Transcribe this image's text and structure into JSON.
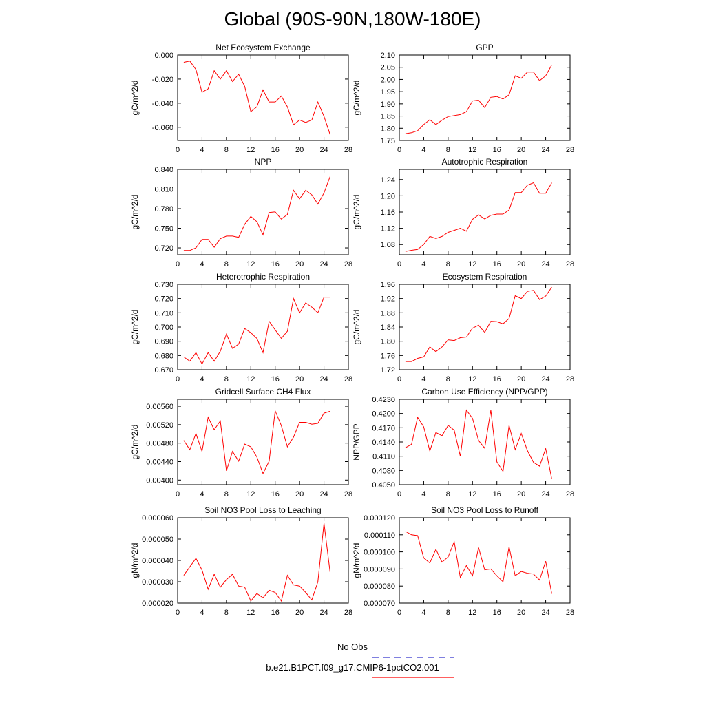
{
  "title": "Global (90S-90N,180W-180E)",
  "legend": [
    {
      "label": "No Obs",
      "color": "#3333cc",
      "style": "dashed"
    },
    {
      "label": "b.e21.B1PCT.f09_g17.CMIP6-1pctCO2.001",
      "color": "#ff0000",
      "style": "solid"
    }
  ],
  "chart_data": [
    {
      "type": "line",
      "title": "Net Ecosystem Exchange",
      "ylabel": "gC/m^2/d",
      "xlim": [
        0,
        28
      ],
      "ylim": [
        -0.071,
        0.0
      ],
      "xticks": [
        "0",
        "4",
        "8",
        "12",
        "16",
        "20",
        "24",
        "28"
      ],
      "yticks": [
        {
          "v": 0.0,
          "l": "0.000"
        },
        {
          "v": -0.02,
          "l": "-0.020"
        },
        {
          "v": -0.04,
          "l": "-0.040"
        },
        {
          "v": -0.06,
          "l": "-0.060"
        }
      ],
      "x": [
        1,
        2,
        3,
        4,
        5,
        6,
        7,
        8,
        9,
        10,
        11,
        12,
        13,
        14,
        15,
        16,
        17,
        18,
        19,
        20,
        21,
        22,
        23,
        24,
        25
      ],
      "y": [
        -0.006,
        -0.005,
        -0.012,
        -0.031,
        -0.028,
        -0.013,
        -0.02,
        -0.013,
        -0.022,
        -0.016,
        -0.026,
        -0.047,
        -0.043,
        -0.029,
        -0.039,
        -0.039,
        -0.034,
        -0.043,
        -0.058,
        -0.054,
        -0.056,
        -0.054,
        -0.039,
        -0.051,
        -0.066
      ]
    },
    {
      "type": "line",
      "title": "GPP",
      "ylabel": "gC/m^2/d",
      "xlim": [
        0,
        28
      ],
      "ylim": [
        1.75,
        2.1
      ],
      "xticks": [
        "0",
        "4",
        "8",
        "12",
        "16",
        "20",
        "24",
        "28"
      ],
      "yticks": [
        {
          "v": 1.75,
          "l": "1.75"
        },
        {
          "v": 1.8,
          "l": "1.80"
        },
        {
          "v": 1.85,
          "l": "1.85"
        },
        {
          "v": 1.9,
          "l": "1.90"
        },
        {
          "v": 1.95,
          "l": "1.95"
        },
        {
          "v": 2.0,
          "l": "2.00"
        },
        {
          "v": 2.05,
          "l": "2.05"
        },
        {
          "v": 2.1,
          "l": "2.10"
        }
      ],
      "x": [
        1,
        2,
        3,
        4,
        5,
        6,
        7,
        8,
        9,
        10,
        11,
        12,
        13,
        14,
        15,
        16,
        17,
        18,
        19,
        20,
        21,
        22,
        23,
        24,
        25
      ],
      "y": [
        1.778,
        1.782,
        1.79,
        1.815,
        1.835,
        1.815,
        1.833,
        1.848,
        1.852,
        1.856,
        1.868,
        1.912,
        1.915,
        1.885,
        1.927,
        1.93,
        1.92,
        1.937,
        2.015,
        2.005,
        2.03,
        2.03,
        1.995,
        2.015,
        2.06
      ]
    },
    {
      "type": "line",
      "title": "NPP",
      "ylabel": "gC/m^2/d",
      "xlim": [
        0,
        28
      ],
      "ylim": [
        0.7095,
        0.84
      ],
      "xticks": [
        "0",
        "4",
        "8",
        "12",
        "16",
        "20",
        "24",
        "28"
      ],
      "yticks": [
        {
          "v": 0.72,
          "l": "0.720"
        },
        {
          "v": 0.75,
          "l": "0.750"
        },
        {
          "v": 0.78,
          "l": "0.780"
        },
        {
          "v": 0.81,
          "l": "0.810"
        },
        {
          "v": 0.84,
          "l": "0.840"
        }
      ],
      "x": [
        1,
        2,
        3,
        4,
        5,
        6,
        7,
        8,
        9,
        10,
        11,
        12,
        13,
        14,
        15,
        16,
        17,
        18,
        19,
        20,
        21,
        22,
        23,
        24,
        25
      ],
      "y": [
        0.716,
        0.716,
        0.72,
        0.733,
        0.733,
        0.721,
        0.734,
        0.738,
        0.738,
        0.736,
        0.756,
        0.768,
        0.76,
        0.74,
        0.774,
        0.775,
        0.764,
        0.771,
        0.808,
        0.795,
        0.808,
        0.801,
        0.787,
        0.804,
        0.829
      ]
    },
    {
      "type": "line",
      "title": "Autotrophic Respiration",
      "ylabel": "gC/m^2/d",
      "xlim": [
        0,
        28
      ],
      "ylim": [
        1.055,
        1.265
      ],
      "xticks": [
        "0",
        "4",
        "8",
        "12",
        "16",
        "20",
        "24",
        "28"
      ],
      "yticks": [
        {
          "v": 1.08,
          "l": "1.08"
        },
        {
          "v": 1.12,
          "l": "1.12"
        },
        {
          "v": 1.16,
          "l": "1.16"
        },
        {
          "v": 1.2,
          "l": "1.20"
        },
        {
          "v": 1.24,
          "l": "1.24"
        }
      ],
      "x": [
        1,
        2,
        3,
        4,
        5,
        6,
        7,
        8,
        9,
        10,
        11,
        12,
        13,
        14,
        15,
        16,
        17,
        18,
        19,
        20,
        21,
        22,
        23,
        24,
        25
      ],
      "y": [
        1.063,
        1.066,
        1.068,
        1.08,
        1.1,
        1.095,
        1.1,
        1.11,
        1.115,
        1.12,
        1.113,
        1.142,
        1.153,
        1.143,
        1.152,
        1.155,
        1.155,
        1.165,
        1.208,
        1.208,
        1.226,
        1.232,
        1.206,
        1.206,
        1.232
      ]
    },
    {
      "type": "line",
      "title": "Heterotrophic Respiration",
      "ylabel": "gC/m^2/d",
      "xlim": [
        0,
        28
      ],
      "ylim": [
        0.67,
        0.73
      ],
      "xticks": [
        "0",
        "4",
        "8",
        "12",
        "16",
        "20",
        "24",
        "28"
      ],
      "yticks": [
        {
          "v": 0.67,
          "l": "0.670"
        },
        {
          "v": 0.68,
          "l": "0.680"
        },
        {
          "v": 0.69,
          "l": "0.690"
        },
        {
          "v": 0.7,
          "l": "0.700"
        },
        {
          "v": 0.71,
          "l": "0.710"
        },
        {
          "v": 0.72,
          "l": "0.720"
        },
        {
          "v": 0.73,
          "l": "0.730"
        }
      ],
      "x": [
        1,
        2,
        3,
        4,
        5,
        6,
        7,
        8,
        9,
        10,
        11,
        12,
        13,
        14,
        15,
        16,
        17,
        18,
        19,
        20,
        21,
        22,
        23,
        24,
        25
      ],
      "y": [
        0.679,
        0.676,
        0.682,
        0.674,
        0.682,
        0.676,
        0.683,
        0.695,
        0.685,
        0.688,
        0.699,
        0.696,
        0.692,
        0.682,
        0.704,
        0.698,
        0.692,
        0.697,
        0.72,
        0.71,
        0.717,
        0.714,
        0.71,
        0.721,
        0.721
      ]
    },
    {
      "type": "line",
      "title": "Ecosystem Respiration",
      "ylabel": "gC/m^2/d",
      "xlim": [
        0,
        28
      ],
      "ylim": [
        1.72,
        1.96
      ],
      "xticks": [
        "0",
        "4",
        "8",
        "12",
        "16",
        "20",
        "24",
        "28"
      ],
      "yticks": [
        {
          "v": 1.72,
          "l": "1.72"
        },
        {
          "v": 1.76,
          "l": "1.76"
        },
        {
          "v": 1.8,
          "l": "1.80"
        },
        {
          "v": 1.84,
          "l": "1.84"
        },
        {
          "v": 1.88,
          "l": "1.88"
        },
        {
          "v": 1.92,
          "l": "1.92"
        },
        {
          "v": 1.96,
          "l": "1.96"
        }
      ],
      "x": [
        1,
        2,
        3,
        4,
        5,
        6,
        7,
        8,
        9,
        10,
        11,
        12,
        13,
        14,
        15,
        16,
        17,
        18,
        19,
        20,
        21,
        22,
        23,
        24,
        25
      ],
      "y": [
        1.743,
        1.743,
        1.752,
        1.756,
        1.784,
        1.771,
        1.784,
        1.804,
        1.802,
        1.81,
        1.812,
        1.837,
        1.845,
        1.825,
        1.856,
        1.855,
        1.849,
        1.864,
        1.928,
        1.92,
        1.94,
        1.943,
        1.917,
        1.927,
        1.952
      ]
    },
    {
      "type": "line",
      "title": "Gridcell Surface CH4 Flux",
      "ylabel": "gC/m^2/d",
      "xlim": [
        0,
        28
      ],
      "ylim": [
        0.0039,
        0.00575
      ],
      "xticks": [
        "0",
        "4",
        "8",
        "12",
        "16",
        "20",
        "24",
        "28"
      ],
      "yticks": [
        {
          "v": 0.004,
          "l": "0.00400"
        },
        {
          "v": 0.0044,
          "l": "0.00440"
        },
        {
          "v": 0.0048,
          "l": "0.00480"
        },
        {
          "v": 0.0052,
          "l": "0.00520"
        },
        {
          "v": 0.0056,
          "l": "0.00560"
        }
      ],
      "x": [
        1,
        2,
        3,
        4,
        5,
        6,
        7,
        8,
        9,
        10,
        11,
        12,
        13,
        14,
        15,
        16,
        17,
        18,
        19,
        20,
        21,
        22,
        23,
        24,
        25
      ],
      "y": [
        0.00486,
        0.00466,
        0.00501,
        0.00462,
        0.00536,
        0.00509,
        0.00528,
        0.0042,
        0.00462,
        0.00441,
        0.00478,
        0.00472,
        0.0045,
        0.00414,
        0.00441,
        0.0055,
        0.00518,
        0.00472,
        0.00493,
        0.00525,
        0.00525,
        0.00521,
        0.00523,
        0.00545,
        0.00549
      ]
    },
    {
      "type": "line",
      "title": "Carbon Use Efficiency (NPP/GPP)",
      "ylabel": "NPP/GPP",
      "xlim": [
        0,
        28
      ],
      "ylim": [
        0.405,
        0.423
      ],
      "xticks": [
        "0",
        "4",
        "8",
        "12",
        "16",
        "20",
        "24",
        "28"
      ],
      "yticks": [
        {
          "v": 0.405,
          "l": "0.4050"
        },
        {
          "v": 0.408,
          "l": "0.4080"
        },
        {
          "v": 0.411,
          "l": "0.4110"
        },
        {
          "v": 0.414,
          "l": "0.4140"
        },
        {
          "v": 0.417,
          "l": "0.4170"
        },
        {
          "v": 0.42,
          "l": "0.4200"
        },
        {
          "v": 0.423,
          "l": "0.4230"
        }
      ],
      "x": [
        1,
        2,
        3,
        4,
        5,
        6,
        7,
        8,
        9,
        10,
        11,
        12,
        13,
        14,
        15,
        16,
        17,
        18,
        19,
        20,
        21,
        22,
        23,
        24,
        25
      ],
      "y": [
        0.4128,
        0.4135,
        0.4192,
        0.4172,
        0.4121,
        0.416,
        0.4153,
        0.4175,
        0.4165,
        0.411,
        0.4207,
        0.419,
        0.4143,
        0.4127,
        0.4207,
        0.4098,
        0.4078,
        0.4175,
        0.4124,
        0.4158,
        0.4122,
        0.4097,
        0.4089,
        0.4126,
        0.4062
      ]
    },
    {
      "type": "line",
      "title": "Soil NO3 Pool Loss to Leaching",
      "ylabel": "gN/m^2/d",
      "xlim": [
        0,
        28
      ],
      "ylim": [
        2e-05,
        6e-05
      ],
      "xticks": [
        "0",
        "4",
        "8",
        "12",
        "16",
        "20",
        "24",
        "28"
      ],
      "yticks": [
        {
          "v": 2e-05,
          "l": "0.000020"
        },
        {
          "v": 3e-05,
          "l": "0.000030"
        },
        {
          "v": 4e-05,
          "l": "0.000040"
        },
        {
          "v": 5e-05,
          "l": "0.000050"
        },
        {
          "v": 6e-05,
          "l": "0.000060"
        }
      ],
      "x": [
        1,
        2,
        3,
        4,
        5,
        6,
        7,
        8,
        9,
        10,
        11,
        12,
        13,
        14,
        15,
        16,
        17,
        18,
        19,
        20,
        21,
        22,
        23,
        24,
        25
      ],
      "y": [
        3.3e-05,
        3.7e-05,
        4.1e-05,
        3.55e-05,
        2.65e-05,
        3.35e-05,
        2.75e-05,
        3.1e-05,
        3.35e-05,
        2.8e-05,
        2.75e-05,
        2.1e-05,
        2.45e-05,
        2.25e-05,
        2.6e-05,
        2.5e-05,
        2.1e-05,
        3.3e-05,
        2.85e-05,
        2.8e-05,
        2.5e-05,
        2.15e-05,
        3e-05,
        5.75e-05,
        3.45e-05
      ]
    },
    {
      "type": "line",
      "title": "Soil NO3 Pool Loss to Runoff",
      "ylabel": "gN/m^2/d",
      "xlim": [
        0,
        28
      ],
      "ylim": [
        7e-05,
        0.00012
      ],
      "xticks": [
        "0",
        "4",
        "8",
        "12",
        "16",
        "20",
        "24",
        "28"
      ],
      "yticks": [
        {
          "v": 7e-05,
          "l": "0.000070"
        },
        {
          "v": 8e-05,
          "l": "0.000080"
        },
        {
          "v": 9e-05,
          "l": "0.000090"
        },
        {
          "v": 0.0001,
          "l": "0.000100"
        },
        {
          "v": 0.00011,
          "l": "0.000110"
        },
        {
          "v": 0.00012,
          "l": "0.000120"
        }
      ],
      "x": [
        1,
        2,
        3,
        4,
        5,
        6,
        7,
        8,
        9,
        10,
        11,
        12,
        13,
        14,
        15,
        16,
        17,
        18,
        19,
        20,
        21,
        22,
        23,
        24,
        25
      ],
      "y": [
        0.000112,
        0.00011,
        0.0001095,
        9.65e-05,
        9.35e-05,
        0.0001015,
        9.4e-05,
        9.7e-05,
        0.000106,
        8.5e-05,
        9.2e-05,
        8.6e-05,
        0.0001025,
        8.95e-05,
        9e-05,
        8.6e-05,
        8.25e-05,
        0.000103,
        8.6e-05,
        8.85e-05,
        8.75e-05,
        8.7e-05,
        8.35e-05,
        9.45e-05,
        7.55e-05
      ]
    }
  ]
}
